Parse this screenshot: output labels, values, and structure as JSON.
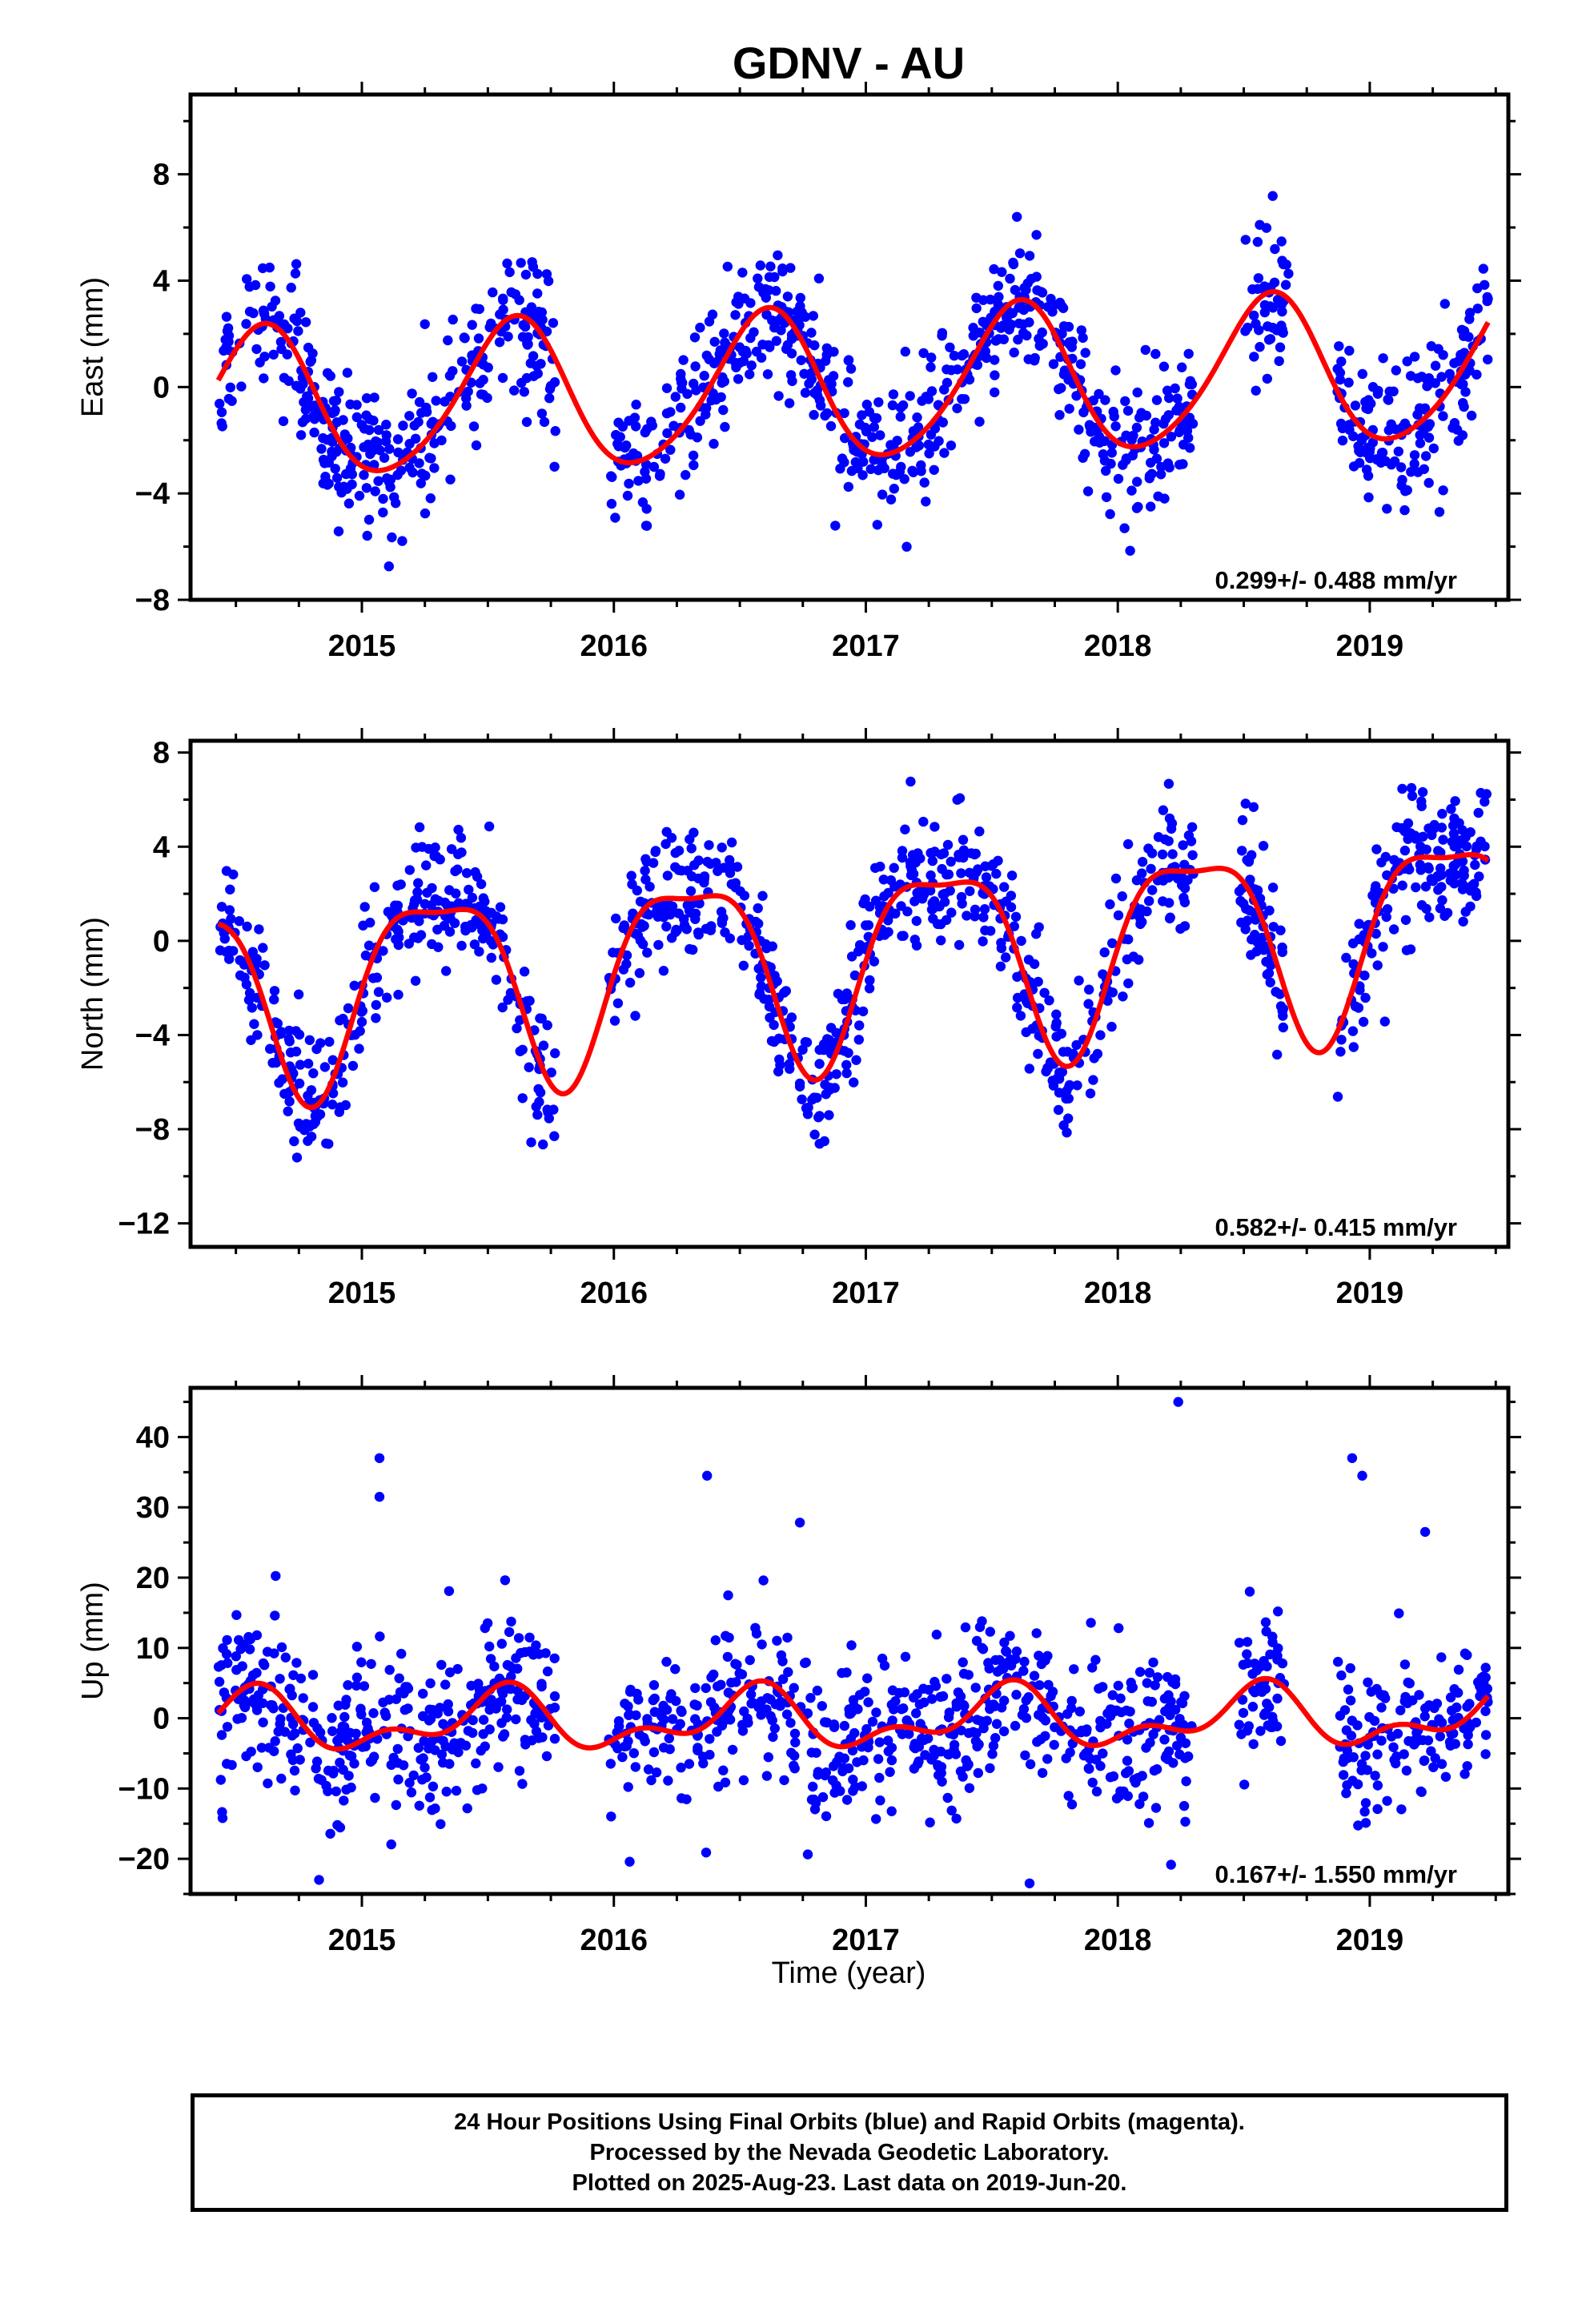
{
  "title": "GDNV - AU",
  "x_label": "Time (year)",
  "caption": {
    "line1": "24 Hour Positions Using Final Orbits (blue) and Rapid Orbits (magenta).",
    "line2": "Processed by the Nevada Geodetic Laboratory.",
    "line3": "Plotted on 2025-Aug-23. Last data on 2019-Jun-20."
  },
  "colors": {
    "points": "#0000ff",
    "fit": "#ff0000",
    "frame": "#000000"
  },
  "chart_data": [
    {
      "type": "scatter",
      "ylabel": "East (mm)",
      "rate_label": "0.299+/- 0.488 mm/yr",
      "xlim": [
        2014.32,
        2019.55
      ],
      "ylim": [
        -8,
        11
      ],
      "x_ticks": [
        2015,
        2016,
        2017,
        2018,
        2019
      ],
      "y_ticks": [
        -8,
        -4,
        0,
        4,
        8
      ],
      "grid": false,
      "data_window": [
        2014.43,
        2019.47
      ],
      "gaps": [
        [
          2015.77,
          2015.98
        ],
        [
          2018.3,
          2018.5
        ],
        [
          2018.68,
          2018.87
        ]
      ],
      "model": {
        "offset": 0.0,
        "trend": 0.299,
        "t0": 2017.0,
        "amp1": 2.8,
        "phase1": 2014.6,
        "amp2": 0.35,
        "phase2": 2014.65
      },
      "series": [
        {
          "name": "Final Orbits (blue)",
          "kind": "points",
          "count": 1300,
          "noise_sd": 1.3
        },
        {
          "kind": "fit_curve"
        }
      ]
    },
    {
      "type": "scatter",
      "ylabel": "North (mm)",
      "rate_label": "0.582+/- 0.415 mm/yr",
      "xlim": [
        2014.32,
        2019.55
      ],
      "ylim": [
        -13,
        8.5
      ],
      "x_ticks": [
        2015,
        2016,
        2017,
        2018,
        2019
      ],
      "y_ticks": [
        -12,
        -8,
        -4,
        0,
        4,
        8
      ],
      "grid": false,
      "data_window": [
        2014.43,
        2019.47
      ],
      "gaps": [
        [
          2015.77,
          2015.98
        ],
        [
          2018.3,
          2018.48
        ],
        [
          2018.66,
          2018.87
        ]
      ],
      "model": {
        "offset": -0.6,
        "trend": 0.582,
        "t0": 2017.0,
        "amp1": 4.0,
        "phase1": 2014.3,
        "amp2": 1.2,
        "phase2": 2014.55
      },
      "series": [
        {
          "name": "Final Orbits (blue)",
          "kind": "points",
          "count": 1300,
          "noise_sd": 1.4
        },
        {
          "kind": "fit_curve"
        }
      ]
    },
    {
      "type": "scatter",
      "ylabel": "Up (mm)",
      "rate_label": "0.167+/- 1.550 mm/yr",
      "xlim": [
        2014.32,
        2019.55
      ],
      "ylim": [
        -25,
        47
      ],
      "x_ticks": [
        2015,
        2016,
        2017,
        2018,
        2019
      ],
      "y_ticks": [
        -20,
        -10,
        0,
        10,
        20,
        30,
        40
      ],
      "grid": false,
      "data_window": [
        2014.43,
        2019.47
      ],
      "gaps": [
        [
          2015.77,
          2015.98
        ],
        [
          2018.3,
          2018.48
        ],
        [
          2018.66,
          2018.87
        ]
      ],
      "model": {
        "offset": -0.2,
        "trend": 0.167,
        "t0": 2017.0,
        "amp1": 3.5,
        "phase1": 2014.55,
        "amp2": 2.2,
        "phase2": 2014.6
      },
      "series": [
        {
          "name": "Final Orbits (blue)",
          "kind": "points",
          "count": 1300,
          "noise_sd": 5.5
        },
        {
          "kind": "fit_curve"
        }
      ],
      "outliers": [
        {
          "x": 2015.07,
          "y": 37
        },
        {
          "x": 2015.07,
          "y": 31.5
        },
        {
          "x": 2016.37,
          "y": 34.5
        },
        {
          "x": 2018.24,
          "y": 45
        },
        {
          "x": 2018.93,
          "y": 37
        },
        {
          "x": 2018.97,
          "y": 34.5
        },
        {
          "x": 2019.22,
          "y": 26.5
        },
        {
          "x": 2014.83,
          "y": -23
        },
        {
          "x": 2017.65,
          "y": -23.5
        }
      ]
    }
  ]
}
